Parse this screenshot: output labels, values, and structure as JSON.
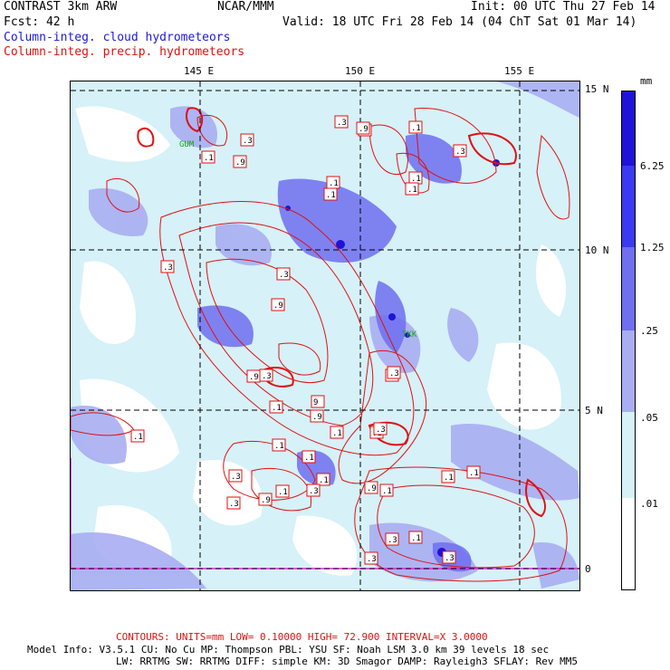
{
  "header": {
    "left1": "CONTRAST  3km ARW",
    "center1": "NCAR/MMM",
    "right1": "Init: 00 UTC Thu 27 Feb 14",
    "left2": "Fcst:   42 h",
    "right2": "Valid: 18 UTC Fri 28 Feb 14 (04 ChT Sat 01 Mar 14)",
    "legend_cloud": "Column-integ. cloud hydrometeors",
    "legend_precip": "Column-integ. precip. hydrometeors"
  },
  "axes": {
    "lon_labels": [
      "145 E",
      "150 E",
      "155 E"
    ],
    "lat_labels": [
      "15 N",
      "10 N",
      "5 N",
      "0"
    ]
  },
  "colorbar": {
    "unit": "mm",
    "labels": [
      "6.25",
      "1.25",
      ".25",
      ".05",
      ".01"
    ],
    "colors": [
      "#1f12d9",
      "#3a3af0",
      "#6f6ff0",
      "#a9aef2",
      "#d6f1f8",
      "#ffffff"
    ]
  },
  "contour_labels": [
    ".3",
    ".1",
    ".9",
    ".3",
    ".1",
    ".1",
    ".3",
    ".9",
    ".3",
    ".1",
    ".9",
    ".3",
    ".1",
    "9",
    ".3",
    ".1",
    ".1",
    ".3",
    ".1",
    ".1",
    ".9",
    ".3",
    ".1",
    ".1",
    ".3",
    ".3",
    ".1",
    ".9",
    ".1",
    ".1",
    ".3",
    ".1",
    ".1",
    ".1",
    ".3",
    ".3",
    ".9",
    ".1",
    ".9",
    ".1",
    ".3",
    ".1",
    ".3"
  ],
  "stations": [
    "GUM",
    "TKK"
  ],
  "footer": {
    "contours": "CONTOURS:  UNITS=mm  LOW= 0.10000      HIGH= 72.900      INTERVAL=X  3.0000",
    "model1": "Model Info: V3.5.1    CU: No Cu    MP: Thompson    PBL: YSU      SF: Noah LSM    3.0 km   39 levels   18 sec",
    "model2": "LW: RRTMG   SW: RRTMG  DIFF: simple KM: 3D Smagor DAMP: Rayleigh3  SFLAY: Rev MM5"
  }
}
